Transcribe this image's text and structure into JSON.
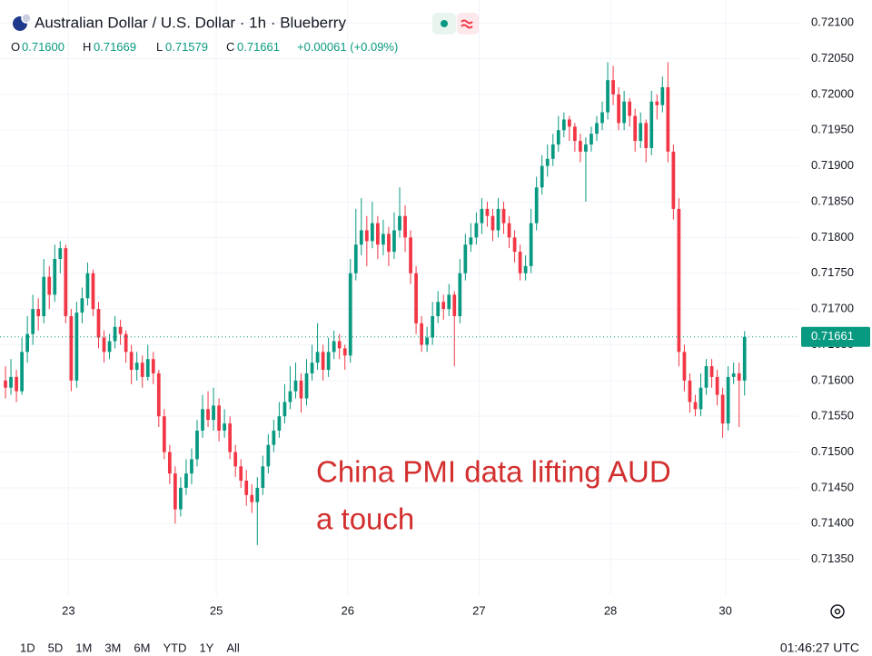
{
  "chart_data": {
    "type": "candlestick",
    "title": "Australian Dollar / U.S. Dollar · 1h · Blueberry",
    "header": {
      "open_label": "O",
      "open": "0.71600",
      "high_label": "H",
      "high": "0.71669",
      "low_label": "L",
      "low": "0.71579",
      "close_label": "C",
      "close": "0.71661",
      "change": "+0.00061 (+0.09%)"
    },
    "annotation": [
      "China PMI data lifting AUD",
      "a touch"
    ],
    "up_color": "#089981",
    "down_color": "#f23645",
    "last_price": {
      "value": 0.71661,
      "label": "0.71661"
    },
    "grid": true,
    "xlim": [
      -1,
      145
    ],
    "xticks": [
      {
        "value": 11.5,
        "label": "23"
      },
      {
        "value": 38.5,
        "label": "25"
      },
      {
        "value": 62.5,
        "label": "26"
      },
      {
        "value": 86.5,
        "label": "27"
      },
      {
        "value": 110.5,
        "label": "28"
      },
      {
        "value": 131.5,
        "label": "30"
      }
    ],
    "ylim": [
      0.713,
      0.72132
    ],
    "yticks": [
      {
        "value": 0.7135,
        "label": "0.71350"
      },
      {
        "value": 0.714,
        "label": "0.71400"
      },
      {
        "value": 0.7145,
        "label": "0.71450"
      },
      {
        "value": 0.715,
        "label": "0.71500"
      },
      {
        "value": 0.7155,
        "label": "0.71550"
      },
      {
        "value": 0.716,
        "label": "0.71600"
      },
      {
        "value": 0.7165,
        "label": "0.71650"
      },
      {
        "value": 0.717,
        "label": "0.71700"
      },
      {
        "value": 0.7175,
        "label": "0.71750"
      },
      {
        "value": 0.718,
        "label": "0.71800"
      },
      {
        "value": 0.7185,
        "label": "0.71850"
      },
      {
        "value": 0.719,
        "label": "0.71900"
      },
      {
        "value": 0.7195,
        "label": "0.71950"
      },
      {
        "value": 0.72,
        "label": "0.72000"
      },
      {
        "value": 0.7205,
        "label": "0.72050"
      },
      {
        "value": 0.721,
        "label": "0.72100"
      }
    ],
    "ranges": [
      "1D",
      "5D",
      "1M",
      "3M",
      "6M",
      "YTD",
      "1Y",
      "All"
    ],
    "clock": "01:46:27 UTC",
    "x": [
      0,
      1,
      2,
      3,
      4,
      5,
      6,
      7,
      8,
      9,
      10,
      11,
      12,
      13,
      14,
      15,
      16,
      17,
      18,
      19,
      20,
      21,
      22,
      23,
      24,
      25,
      26,
      27,
      28,
      29,
      30,
      31,
      32,
      33,
      34,
      35,
      36,
      37,
      38,
      39,
      40,
      41,
      42,
      43,
      44,
      45,
      46,
      47,
      48,
      49,
      50,
      51,
      52,
      53,
      54,
      55,
      56,
      57,
      58,
      59,
      60,
      61,
      62,
      63,
      64,
      65,
      66,
      67,
      68,
      69,
      70,
      71,
      72,
      73,
      74,
      75,
      76,
      77,
      78,
      79,
      80,
      81,
      82,
      83,
      84,
      85,
      86,
      87,
      88,
      89,
      90,
      91,
      92,
      93,
      94,
      95,
      96,
      97,
      98,
      99,
      100,
      101,
      102,
      103,
      104,
      105,
      106,
      107,
      108,
      109,
      110,
      111,
      112,
      113,
      114,
      115,
      116,
      117,
      118,
      119,
      120,
      121,
      122,
      123,
      124,
      125,
      126,
      127,
      128,
      129,
      130,
      131,
      132,
      133,
      134,
      135
    ],
    "ohlc": [
      [
        0.716,
        0.7162,
        0.71575,
        0.7159
      ],
      [
        0.7159,
        0.7163,
        0.7158,
        0.71605
      ],
      [
        0.71605,
        0.71615,
        0.7157,
        0.71585
      ],
      [
        0.71585,
        0.7166,
        0.7158,
        0.7164
      ],
      [
        0.7164,
        0.7169,
        0.71625,
        0.71665
      ],
      [
        0.71665,
        0.7172,
        0.7165,
        0.717
      ],
      [
        0.717,
        0.71715,
        0.7167,
        0.7169
      ],
      [
        0.7169,
        0.7177,
        0.7168,
        0.71745
      ],
      [
        0.71745,
        0.7176,
        0.717,
        0.7172
      ],
      [
        0.7172,
        0.7179,
        0.7171,
        0.7177
      ],
      [
        0.7177,
        0.71795,
        0.7175,
        0.71785
      ],
      [
        0.71785,
        0.7179,
        0.7168,
        0.7169
      ],
      [
        0.7169,
        0.717,
        0.71585,
        0.716
      ],
      [
        0.716,
        0.7171,
        0.7159,
        0.71695
      ],
      [
        0.71695,
        0.7173,
        0.7168,
        0.71715
      ],
      [
        0.71715,
        0.71765,
        0.71705,
        0.7175
      ],
      [
        0.7175,
        0.71755,
        0.7169,
        0.717
      ],
      [
        0.717,
        0.7171,
        0.71645,
        0.7166
      ],
      [
        0.7166,
        0.7167,
        0.71625,
        0.7164
      ],
      [
        0.7164,
        0.71665,
        0.7163,
        0.71655
      ],
      [
        0.71655,
        0.7169,
        0.71645,
        0.71675
      ],
      [
        0.71675,
        0.71685,
        0.7165,
        0.71665
      ],
      [
        0.71665,
        0.7167,
        0.71625,
        0.7164
      ],
      [
        0.7164,
        0.7165,
        0.71595,
        0.71615
      ],
      [
        0.71615,
        0.7164,
        0.716,
        0.71625
      ],
      [
        0.71625,
        0.71635,
        0.7159,
        0.71605
      ],
      [
        0.71605,
        0.7165,
        0.716,
        0.7163
      ],
      [
        0.7163,
        0.7164,
        0.71595,
        0.7161
      ],
      [
        0.7161,
        0.71615,
        0.71535,
        0.7155
      ],
      [
        0.7155,
        0.7156,
        0.7149,
        0.715
      ],
      [
        0.715,
        0.7151,
        0.71455,
        0.7147
      ],
      [
        0.7147,
        0.7148,
        0.714,
        0.7142
      ],
      [
        0.7142,
        0.71465,
        0.7141,
        0.7145
      ],
      [
        0.7145,
        0.7149,
        0.7144,
        0.7147
      ],
      [
        0.7147,
        0.71505,
        0.71455,
        0.7149
      ],
      [
        0.7149,
        0.71545,
        0.7148,
        0.7153
      ],
      [
        0.7153,
        0.7158,
        0.7152,
        0.7156
      ],
      [
        0.7156,
        0.71585,
        0.71535,
        0.71545
      ],
      [
        0.71545,
        0.7159,
        0.7153,
        0.71565
      ],
      [
        0.71565,
        0.71575,
        0.71515,
        0.7153
      ],
      [
        0.7153,
        0.7156,
        0.7152,
        0.7154
      ],
      [
        0.7154,
        0.7155,
        0.7149,
        0.715
      ],
      [
        0.715,
        0.7151,
        0.71465,
        0.7148
      ],
      [
        0.7148,
        0.7149,
        0.7145,
        0.7146
      ],
      [
        0.7146,
        0.71475,
        0.71425,
        0.7144
      ],
      [
        0.7144,
        0.71455,
        0.71415,
        0.7143
      ],
      [
        0.7143,
        0.71465,
        0.7137,
        0.7145
      ],
      [
        0.7145,
        0.71495,
        0.7144,
        0.7148
      ],
      [
        0.7148,
        0.71525,
        0.7147,
        0.7151
      ],
      [
        0.7151,
        0.71545,
        0.715,
        0.7153
      ],
      [
        0.7153,
        0.7157,
        0.7152,
        0.7155
      ],
      [
        0.7155,
        0.71595,
        0.7154,
        0.7157
      ],
      [
        0.7157,
        0.7162,
        0.7156,
        0.71585
      ],
      [
        0.71585,
        0.71625,
        0.71575,
        0.716
      ],
      [
        0.716,
        0.7161,
        0.71555,
        0.71575
      ],
      [
        0.71575,
        0.7163,
        0.71565,
        0.7161
      ],
      [
        0.7161,
        0.7165,
        0.716,
        0.71625
      ],
      [
        0.71625,
        0.7168,
        0.71615,
        0.7164
      ],
      [
        0.7164,
        0.7165,
        0.716,
        0.71615
      ],
      [
        0.71615,
        0.7166,
        0.71605,
        0.7164
      ],
      [
        0.7164,
        0.7167,
        0.7163,
        0.71655
      ],
      [
        0.71655,
        0.71665,
        0.7163,
        0.71645
      ],
      [
        0.71645,
        0.7165,
        0.71615,
        0.71635
      ],
      [
        0.71635,
        0.7177,
        0.71625,
        0.7175
      ],
      [
        0.7175,
        0.7184,
        0.7174,
        0.7179
      ],
      [
        0.7179,
        0.71855,
        0.71775,
        0.7181
      ],
      [
        0.7181,
        0.7183,
        0.7176,
        0.71795
      ],
      [
        0.71795,
        0.7185,
        0.71785,
        0.7182
      ],
      [
        0.7182,
        0.7183,
        0.7177,
        0.7179
      ],
      [
        0.7179,
        0.71825,
        0.71775,
        0.71805
      ],
      [
        0.71805,
        0.71815,
        0.7176,
        0.7178
      ],
      [
        0.7178,
        0.71835,
        0.7177,
        0.7181
      ],
      [
        0.7181,
        0.7187,
        0.718,
        0.7183
      ],
      [
        0.7183,
        0.71845,
        0.7178,
        0.718
      ],
      [
        0.718,
        0.7181,
        0.71735,
        0.7175
      ],
      [
        0.7175,
        0.7176,
        0.71665,
        0.7168
      ],
      [
        0.7168,
        0.7169,
        0.7164,
        0.7165
      ],
      [
        0.7165,
        0.71675,
        0.7164,
        0.7166
      ],
      [
        0.7166,
        0.7171,
        0.7165,
        0.7169
      ],
      [
        0.7169,
        0.71725,
        0.7168,
        0.7171
      ],
      [
        0.7171,
        0.7172,
        0.71685,
        0.717
      ],
      [
        0.717,
        0.71735,
        0.7169,
        0.7172
      ],
      [
        0.7172,
        0.71725,
        0.7162,
        0.7169
      ],
      [
        0.7169,
        0.7177,
        0.7168,
        0.7175
      ],
      [
        0.7175,
        0.71805,
        0.7174,
        0.7179
      ],
      [
        0.7179,
        0.7182,
        0.7178,
        0.718
      ],
      [
        0.718,
        0.71835,
        0.7179,
        0.7182
      ],
      [
        0.7182,
        0.71855,
        0.71805,
        0.7184
      ],
      [
        0.7184,
        0.7185,
        0.71815,
        0.7183
      ],
      [
        0.7183,
        0.7184,
        0.71795,
        0.7181
      ],
      [
        0.7181,
        0.71855,
        0.718,
        0.7184
      ],
      [
        0.7184,
        0.7185,
        0.71805,
        0.7182
      ],
      [
        0.7182,
        0.7183,
        0.71785,
        0.718
      ],
      [
        0.718,
        0.7181,
        0.71765,
        0.7178
      ],
      [
        0.7178,
        0.7179,
        0.7174,
        0.7175
      ],
      [
        0.7175,
        0.71775,
        0.7174,
        0.7176
      ],
      [
        0.7176,
        0.7184,
        0.7175,
        0.7182
      ],
      [
        0.7182,
        0.71885,
        0.7181,
        0.7187
      ],
      [
        0.7187,
        0.71915,
        0.7186,
        0.719
      ],
      [
        0.719,
        0.7193,
        0.71885,
        0.7191
      ],
      [
        0.7191,
        0.71945,
        0.719,
        0.7193
      ],
      [
        0.7193,
        0.7197,
        0.7192,
        0.7195
      ],
      [
        0.7195,
        0.71975,
        0.7194,
        0.71965
      ],
      [
        0.71965,
        0.7197,
        0.71935,
        0.71955
      ],
      [
        0.71955,
        0.7196,
        0.7192,
        0.71935
      ],
      [
        0.71935,
        0.71945,
        0.71905,
        0.7192
      ],
      [
        0.7192,
        0.7194,
        0.7185,
        0.7193
      ],
      [
        0.7193,
        0.71955,
        0.7192,
        0.71945
      ],
      [
        0.71945,
        0.7197,
        0.71935,
        0.7196
      ],
      [
        0.7196,
        0.7199,
        0.7195,
        0.71975
      ],
      [
        0.71975,
        0.72045,
        0.71965,
        0.7202
      ],
      [
        0.7202,
        0.7204,
        0.71985,
        0.72
      ],
      [
        0.72,
        0.7201,
        0.7195,
        0.7196
      ],
      [
        0.7196,
        0.72005,
        0.7195,
        0.7199
      ],
      [
        0.7199,
        0.71995,
        0.71955,
        0.7197
      ],
      [
        0.7197,
        0.7198,
        0.7192,
        0.71935
      ],
      [
        0.71935,
        0.71975,
        0.71925,
        0.7196
      ],
      [
        0.7196,
        0.71965,
        0.71905,
        0.71925
      ],
      [
        0.71925,
        0.72005,
        0.71915,
        0.7199
      ],
      [
        0.7199,
        0.72,
        0.71965,
        0.71985
      ],
      [
        0.71985,
        0.72025,
        0.71975,
        0.7201
      ],
      [
        0.7201,
        0.72045,
        0.71905,
        0.7192
      ],
      [
        0.7192,
        0.7193,
        0.71825,
        0.7184
      ],
      [
        0.7184,
        0.71855,
        0.7162,
        0.7164
      ],
      [
        0.7164,
        0.7165,
        0.71585,
        0.716
      ],
      [
        0.716,
        0.7161,
        0.71555,
        0.7157
      ],
      [
        0.7157,
        0.7158,
        0.7155,
        0.7156
      ],
      [
        0.7156,
        0.7161,
        0.7155,
        0.7159
      ],
      [
        0.7159,
        0.7163,
        0.7158,
        0.7162
      ],
      [
        0.7162,
        0.7163,
        0.7159,
        0.71605
      ],
      [
        0.71605,
        0.71615,
        0.71565,
        0.7158
      ],
      [
        0.7158,
        0.7159,
        0.7152,
        0.7154
      ],
      [
        0.7154,
        0.7162,
        0.7153,
        0.71605
      ],
      [
        0.71605,
        0.71625,
        0.71595,
        0.7161
      ],
      [
        0.7161,
        0.71625,
        0.71535,
        0.716
      ],
      [
        0.716,
        0.71669,
        0.71579,
        0.71661
      ]
    ]
  }
}
